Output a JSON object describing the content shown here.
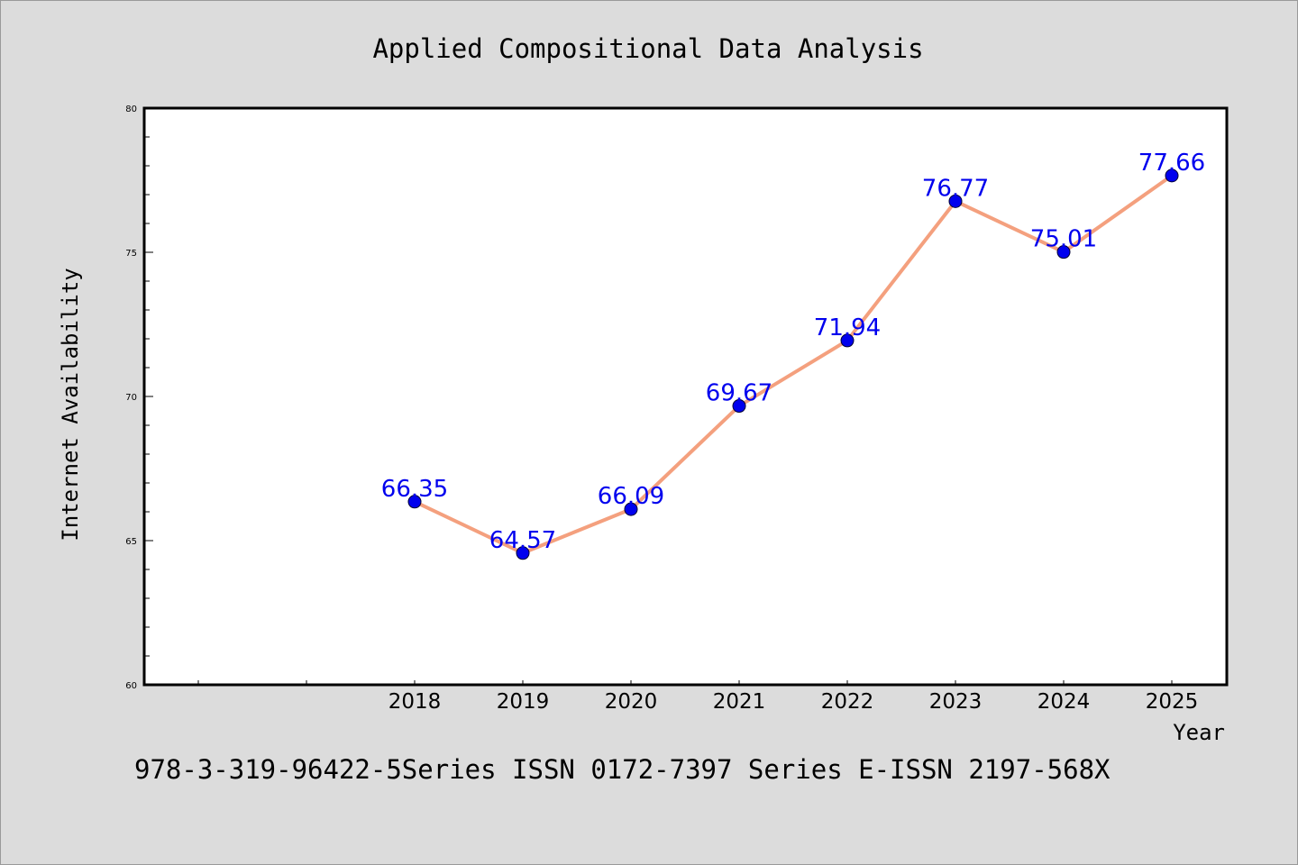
{
  "chart_data": {
    "type": "line",
    "title": "Applied Compositional Data Analysis",
    "xlabel": "Year",
    "ylabel": "Internet Availability",
    "categories": [
      "2018",
      "2019",
      "2020",
      "2021",
      "2022",
      "2023",
      "2024",
      "2025"
    ],
    "series": [
      {
        "values": [
          66.35,
          64.57,
          66.09,
          69.67,
          71.94,
          76.77,
          75.01,
          77.66
        ],
        "labels": [
          "66.35",
          "64.57",
          "66.09",
          "69.67",
          "71.94",
          "76.77",
          "75.01",
          "77.66"
        ]
      }
    ],
    "ylim": [
      60,
      80
    ],
    "yticks": [
      "60",
      "65",
      "70",
      "75",
      "80"
    ],
    "grid": false,
    "legend": "none",
    "colors": {
      "line": "#f4a07e",
      "marker": "#0000ee",
      "label": "#0000ee",
      "background": "#dcdcdc",
      "plot_background": "#ffffff"
    }
  },
  "footer_text": "978-3-319-96422-5Series ISSN 0172-7397 Series E-ISSN 2197-568X"
}
